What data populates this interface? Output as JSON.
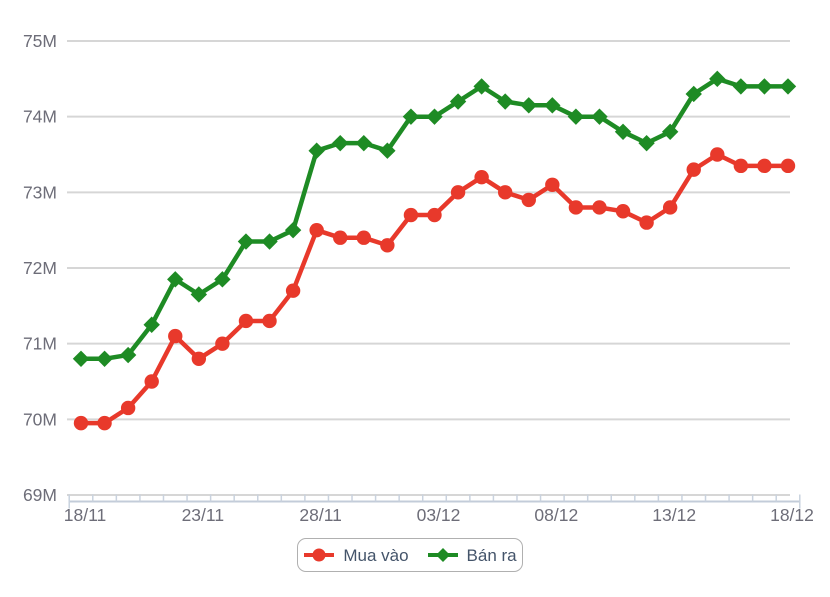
{
  "chart_data": {
    "type": "line",
    "title": "",
    "xlabel": "",
    "ylabel": "",
    "x": [
      "18/11",
      "19/11",
      "20/11",
      "21/11",
      "22/11",
      "23/11",
      "24/11",
      "25/11",
      "26/11",
      "27/11",
      "28/11",
      "29/11",
      "30/11",
      "01/12",
      "02/12",
      "03/12",
      "04/12",
      "05/12",
      "06/12",
      "07/12",
      "08/12",
      "09/12",
      "10/12",
      "11/12",
      "12/12",
      "13/12",
      "14/12",
      "15/12",
      "16/12",
      "17/12",
      "18/12"
    ],
    "x_tick_labels": [
      "18/11",
      "23/11",
      "28/11",
      "03/12",
      "08/12",
      "13/12",
      "18/12"
    ],
    "x_tick_indices": [
      0,
      5,
      10,
      15,
      20,
      25,
      30
    ],
    "y_tick_labels": [
      "75M",
      "74M",
      "73M",
      "72M",
      "71M",
      "70M",
      "69M"
    ],
    "y_tick_values": [
      75,
      74,
      73,
      72,
      71,
      70,
      69
    ],
    "ylim": [
      69,
      75
    ],
    "unit": "M",
    "grid": true,
    "legend_position": "bottom",
    "series": [
      {
        "name": "Mua vào",
        "marker": "circle",
        "color": "#e8392b",
        "values": [
          69.95,
          69.95,
          70.15,
          70.5,
          71.1,
          70.8,
          71.0,
          71.3,
          71.3,
          71.7,
          72.5,
          72.4,
          72.4,
          72.3,
          72.7,
          72.7,
          73.0,
          73.2,
          73.0,
          72.9,
          73.1,
          72.8,
          72.8,
          72.75,
          72.6,
          72.8,
          73.3,
          73.5,
          73.35,
          73.35,
          73.35
        ]
      },
      {
        "name": "Bán ra",
        "marker": "diamond",
        "color": "#1e8b24",
        "values": [
          70.8,
          70.8,
          70.85,
          71.25,
          71.85,
          71.65,
          71.85,
          72.35,
          72.35,
          72.5,
          73.55,
          73.65,
          73.65,
          73.55,
          74.0,
          74.0,
          74.2,
          74.4,
          74.2,
          74.15,
          74.15,
          74.0,
          74.0,
          73.8,
          73.65,
          73.8,
          74.3,
          74.5,
          74.4,
          74.4,
          74.4
        ]
      }
    ],
    "palette": {
      "gridline": "#d6d6d6",
      "axis_line": "#c3ccd9",
      "tick": "#c9d2de",
      "axis_label_text": "#6d6d78"
    }
  },
  "legend": {
    "items": [
      {
        "label": "Mua vào",
        "color": "#e8392b",
        "marker": "circle"
      },
      {
        "label": "Bán ra",
        "color": "#1e8b24",
        "marker": "diamond"
      }
    ]
  }
}
